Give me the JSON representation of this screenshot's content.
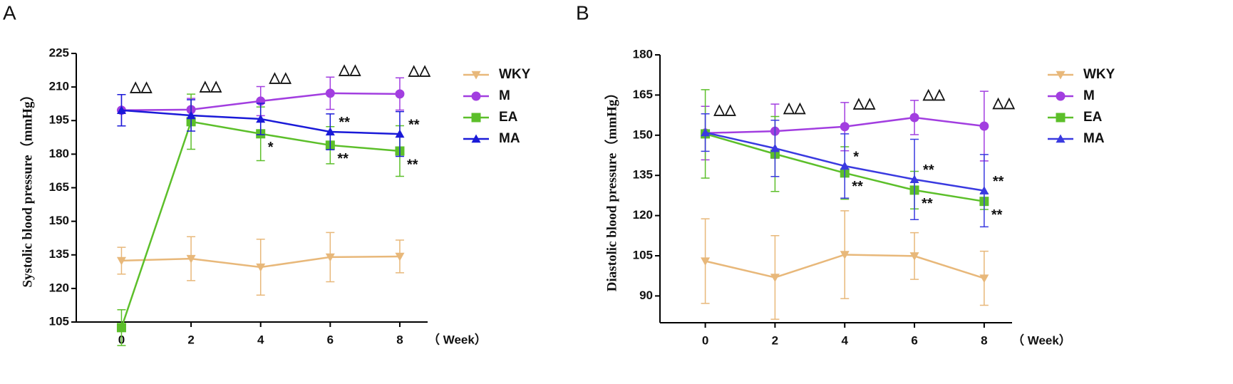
{
  "chart_data": [
    {
      "type": "line",
      "panel_label": "A",
      "y_label": "Systolic blood pressure（mmHg）",
      "x_label": "（ Week）",
      "x": [
        0,
        2,
        4,
        6,
        8
      ],
      "xlim": [
        -1.3,
        8.8
      ],
      "xticks": [
        0,
        2,
        4,
        6,
        8
      ],
      "ylim": [
        105,
        225
      ],
      "yticks": [
        105,
        120,
        135,
        150,
        165,
        180,
        195,
        210,
        225
      ],
      "series": [
        {
          "name": "WKY",
          "color": "#e8b87a",
          "marker": "triangle-down",
          "values": [
            132.4,
            133.3,
            129.5,
            134,
            134.3
          ],
          "errors": [
            6,
            9.8,
            12.5,
            11,
            7.3
          ]
        },
        {
          "name": "M",
          "color": "#a23ee0",
          "marker": "circle",
          "values": [
            199.6,
            199.9,
            203.7,
            207.2,
            206.9
          ],
          "errors": [
            7,
            5,
            6.5,
            7.2,
            7.2
          ],
          "annotations": [
            "△△",
            "△△",
            "△△",
            "△△",
            "△△"
          ],
          "annotation_color": "#a23ee0"
        },
        {
          "name": "EA",
          "color": "#5cbf2a",
          "marker": "square",
          "values": [
            102.5,
            194.5,
            189.1,
            184,
            181.4
          ],
          "errors": [
            8,
            12.3,
            12,
            8.3,
            11.3
          ],
          "annotations": [
            null,
            null,
            "*",
            "**",
            "**"
          ],
          "annotation_color": "#7ee85a"
        },
        {
          "name": "MA",
          "color": "#1a1ad8",
          "marker": "triangle-up",
          "values": [
            199.6,
            197.3,
            195.7,
            190,
            189
          ],
          "errors": [
            7,
            7,
            7,
            8,
            10
          ],
          "annotations": [
            null,
            null,
            null,
            "**",
            "**"
          ],
          "annotation_color": "#1a1ad8"
        }
      ]
    },
    {
      "type": "line",
      "panel_label": "B",
      "y_label": "Diastolic blood pressure（mmHg）",
      "x_label": "（ Week）",
      "x": [
        0,
        2,
        4,
        6,
        8
      ],
      "xlim": [
        -1.3,
        8.8
      ],
      "xticks": [
        0,
        2,
        4,
        6,
        8
      ],
      "ylim": [
        80,
        180
      ],
      "yticks": [
        90,
        105,
        120,
        135,
        150,
        165,
        180
      ],
      "series": [
        {
          "name": "WKY",
          "color": "#e8b87a",
          "marker": "triangle-down",
          "values": [
            103,
            96.9,
            105.4,
            104.9,
            96.6
          ],
          "errors": [
            15.8,
            15.6,
            16.4,
            8.7,
            10.1
          ]
        },
        {
          "name": "M",
          "color": "#a23ee0",
          "marker": "circle",
          "values": [
            150.8,
            151.5,
            153.2,
            156.6,
            153.4
          ],
          "errors": [
            10,
            10.1,
            9,
            6.4,
            13
          ],
          "annotations": [
            "△△",
            "△△",
            "△△",
            "△△",
            "△△"
          ],
          "annotation_color": "#a23ee0"
        },
        {
          "name": "EA",
          "color": "#5cbf2a",
          "marker": "square",
          "values": [
            150.5,
            143,
            135.9,
            129.5,
            125.3
          ],
          "errors": [
            16.5,
            14,
            9.8,
            7,
            3
          ],
          "annotations": [
            null,
            null,
            "**",
            "**",
            "**"
          ],
          "annotation_color": "#7ee85a"
        },
        {
          "name": "MA",
          "color": "#3a3ae0",
          "marker": "triangle-up",
          "values": [
            151,
            145.1,
            138.5,
            133.5,
            129.3
          ],
          "errors": [
            7,
            10.5,
            12,
            15,
            13.5
          ],
          "annotations": [
            null,
            null,
            "*",
            "**",
            "**"
          ],
          "annotation_color": "#3a3ae0"
        }
      ]
    }
  ]
}
